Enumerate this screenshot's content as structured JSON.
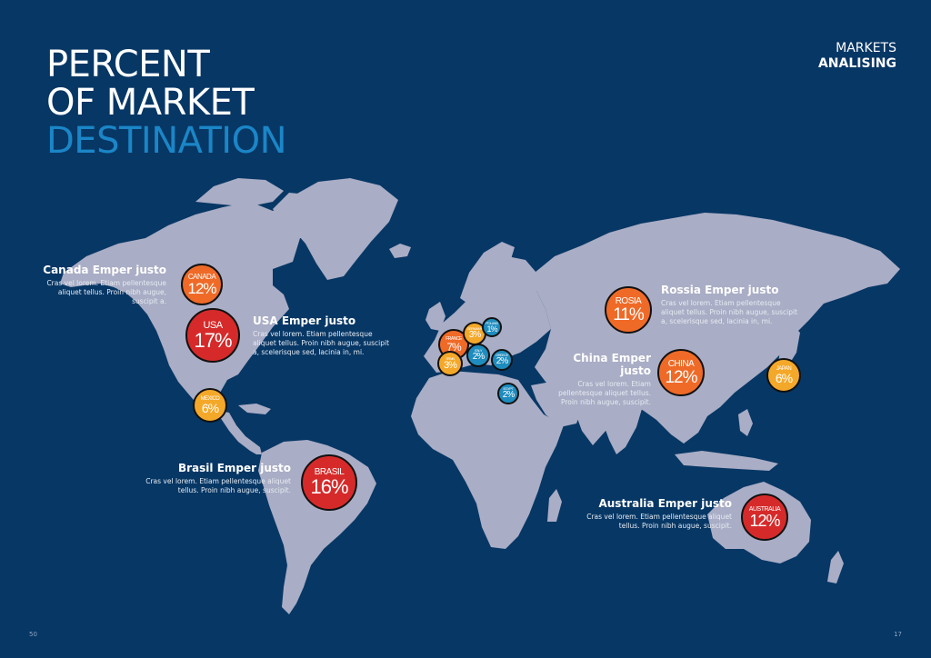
{
  "title": {
    "line1": "PERCENT",
    "line2": "OF MARKET",
    "line3": "DESTINATION"
  },
  "section": {
    "top": "MARKETS",
    "bottom": "ANALISING"
  },
  "colors": {
    "background": "#073765",
    "land": "#a9adc5",
    "title_accent": "#1a86c7",
    "marker_red": "#d62a2a",
    "marker_orange": "#ef6a27",
    "marker_yellow": "#f4a82a",
    "marker_blue": "#1e8cbe"
  },
  "markers": [
    {
      "country": "CANADA",
      "percent": "12%"
    },
    {
      "country": "USA",
      "percent": "17%"
    },
    {
      "country": "MEXICO",
      "percent": "6%"
    },
    {
      "country": "BRASIL",
      "percent": "16%"
    },
    {
      "country": "FRANCE",
      "percent": "7%"
    },
    {
      "country": "GERMANY",
      "percent": "3%"
    },
    {
      "country": "POLAND",
      "percent": "1%"
    },
    {
      "country": "ITALY",
      "percent": "2%"
    },
    {
      "country": "SPAIN",
      "percent": "3%"
    },
    {
      "country": "GREECE",
      "percent": "2%"
    },
    {
      "country": "EGYPT",
      "percent": "2%"
    },
    {
      "country": "ROSIA",
      "percent": "11%"
    },
    {
      "country": "CHINA",
      "percent": "12%"
    },
    {
      "country": "JAPAN",
      "percent": "6%"
    },
    {
      "country": "AUSTRALIA",
      "percent": "12%"
    }
  ],
  "callouts": {
    "canada": {
      "heading": "Canada Emper justo",
      "text": "Cras vel lorem. Etiam pellentesque aliquet tellus. Proin nibh augue, suscipit a."
    },
    "usa": {
      "heading": "USA Emper justo",
      "text": "Cras vel lorem. Etiam pellentesque aliquet tellus. Proin nibh augue, suscipit a, scelerisque sed, lacinia in, mi."
    },
    "brasil": {
      "heading": "Brasil Emper justo",
      "text": "Cras vel lorem. Etiam pellentesque aliquet tellus. Proin nibh augue, suscipit."
    },
    "russia": {
      "heading": "Rossia Emper justo",
      "text": "Cras vel lorem. Etiam pellentesque aliquet tellus. Proin nibh augue, suscipit a, scelerisque sed, lacinia in, mi."
    },
    "china": {
      "heading": "China Emper justo",
      "text": "Cras vel lorem. Etiam pellentesque aliquet tellus. Proin nibh augue, suscipit."
    },
    "australia": {
      "heading": "Australia Emper justo",
      "text": "Cras vel lorem. Etiam pellentesque aliquet tellus. Proin nibh augue, suscipit."
    }
  },
  "page_numbers": {
    "left": "50",
    "right": "17"
  }
}
